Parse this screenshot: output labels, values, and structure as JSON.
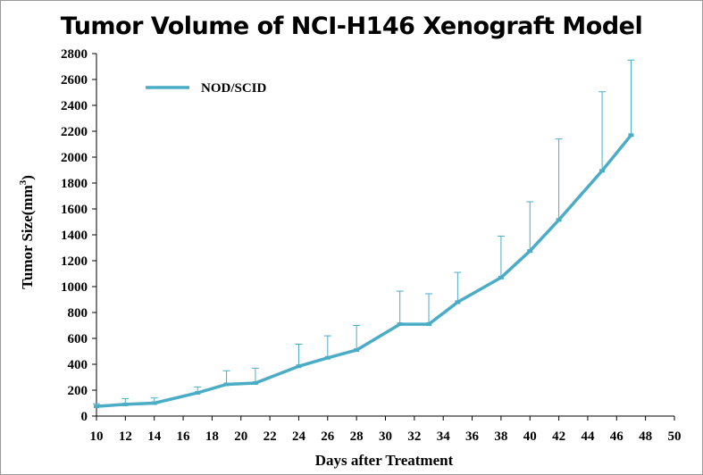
{
  "chart_data": {
    "type": "line",
    "title": "Tumor Volume of NCI-H146 Xenograft Model",
    "xlabel": "Days after Treatment",
    "ylabel_main": "Tumor Size(mm",
    "ylabel_sup": "3",
    "ylabel_close": ")",
    "xlim": [
      10,
      50
    ],
    "ylim": [
      0,
      2800
    ],
    "x_ticks": [
      "10",
      "12",
      "14",
      "16",
      "18",
      "20",
      "22",
      "24",
      "26",
      "28",
      "30",
      "32",
      "34",
      "36",
      "38",
      "40",
      "42",
      "44",
      "46",
      "48",
      "50"
    ],
    "y_ticks": [
      "0",
      "200",
      "400",
      "600",
      "800",
      "1000",
      "1200",
      "1400",
      "1600",
      "1800",
      "2000",
      "2200",
      "2400",
      "2600",
      "2800"
    ],
    "grid": false,
    "legend_position": "top-left",
    "series": [
      {
        "name": "NOD/SCID",
        "color": "#4BACC6",
        "x": [
          10,
          12,
          14,
          17,
          19,
          21,
          24,
          26,
          28,
          31,
          33,
          35,
          38,
          40,
          42,
          45,
          47
        ],
        "y": [
          75,
          90,
          100,
          180,
          245,
          255,
          385,
          450,
          510,
          710,
          710,
          880,
          1070,
          1275,
          1515,
          1895,
          2170
        ],
        "error_upper": [
          20,
          45,
          40,
          45,
          105,
          115,
          170,
          170,
          190,
          255,
          235,
          230,
          320,
          380,
          625,
          610,
          580
        ]
      }
    ]
  }
}
